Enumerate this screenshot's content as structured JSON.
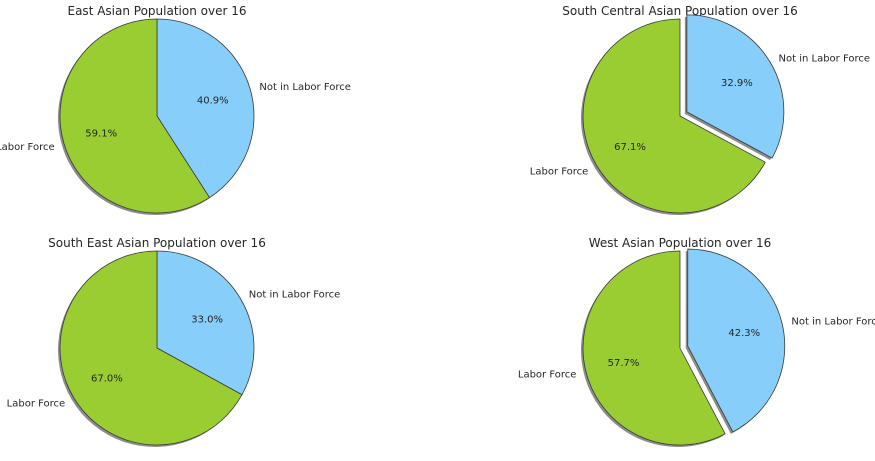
{
  "chart_data": [
    {
      "type": "pie",
      "title": "East Asian Population over 16",
      "categories": [
        "Not in Labor Force",
        "Labor Force"
      ],
      "values": [
        40.9,
        59.1
      ],
      "colors": [
        "#87cefa",
        "#9acd32"
      ],
      "exploded": [
        false,
        false
      ],
      "start_angle_deg": 90,
      "direction": "clockwise",
      "shadow": true
    },
    {
      "type": "pie",
      "title": "South Central Asian Population over 16",
      "categories": [
        "Not in Labor Force",
        "Labor Force"
      ],
      "values": [
        32.9,
        67.1
      ],
      "colors": [
        "#87cefa",
        "#9acd32"
      ],
      "exploded": [
        true,
        false
      ],
      "start_angle_deg": 90,
      "direction": "clockwise",
      "shadow": true
    },
    {
      "type": "pie",
      "title": "South East Asian Population over 16",
      "categories": [
        "Not in Labor Force",
        "Labor Force"
      ],
      "values": [
        33.0,
        67.0
      ],
      "colors": [
        "#87cefa",
        "#9acd32"
      ],
      "exploded": [
        false,
        false
      ],
      "start_angle_deg": 90,
      "direction": "clockwise",
      "shadow": true
    },
    {
      "type": "pie",
      "title": "West Asian Population over 16",
      "categories": [
        "Not in Labor Force",
        "Labor Force"
      ],
      "values": [
        42.3,
        57.7
      ],
      "colors": [
        "#87cefa",
        "#9acd32"
      ],
      "exploded": [
        true,
        false
      ],
      "start_angle_deg": 90,
      "direction": "clockwise",
      "shadow": true
    }
  ]
}
